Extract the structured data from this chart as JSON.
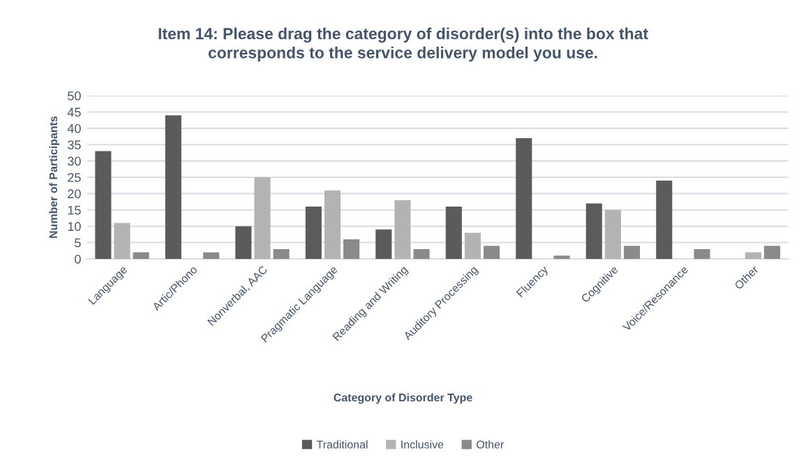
{
  "chart_data": {
    "type": "bar",
    "title": "Item 14: Please drag the category of disorder(s) into the box that\ncorresponds to the service delivery model you use.",
    "xlabel": "Category of Disorder Type",
    "ylabel": "Number of Participants",
    "categories": [
      "Language",
      "Artic/Phono",
      "Nonverbal, AAC",
      "Pragmatic Language",
      "Reading and Writing",
      "Auditory Processing",
      "Fluency",
      "Cognitive",
      "Voice/Resonance",
      "Other"
    ],
    "series": [
      {
        "name": "Traditional",
        "color": "#5b5b5b",
        "values": [
          33,
          44,
          10,
          16,
          9,
          16,
          37,
          17,
          24,
          null
        ]
      },
      {
        "name": "Inclusive",
        "color": "#b3b3b3",
        "values": [
          11,
          null,
          25,
          21,
          18,
          8,
          null,
          15,
          null,
          2
        ]
      },
      {
        "name": "Other",
        "color": "#8a8a8a",
        "values": [
          2,
          2,
          3,
          6,
          3,
          4,
          1,
          4,
          3,
          4
        ]
      }
    ],
    "ylim": [
      0,
      50
    ],
    "yticks": [
      0,
      5,
      10,
      15,
      20,
      25,
      30,
      35,
      40,
      45,
      50
    ],
    "grid": "y",
    "legend": "bottom"
  }
}
